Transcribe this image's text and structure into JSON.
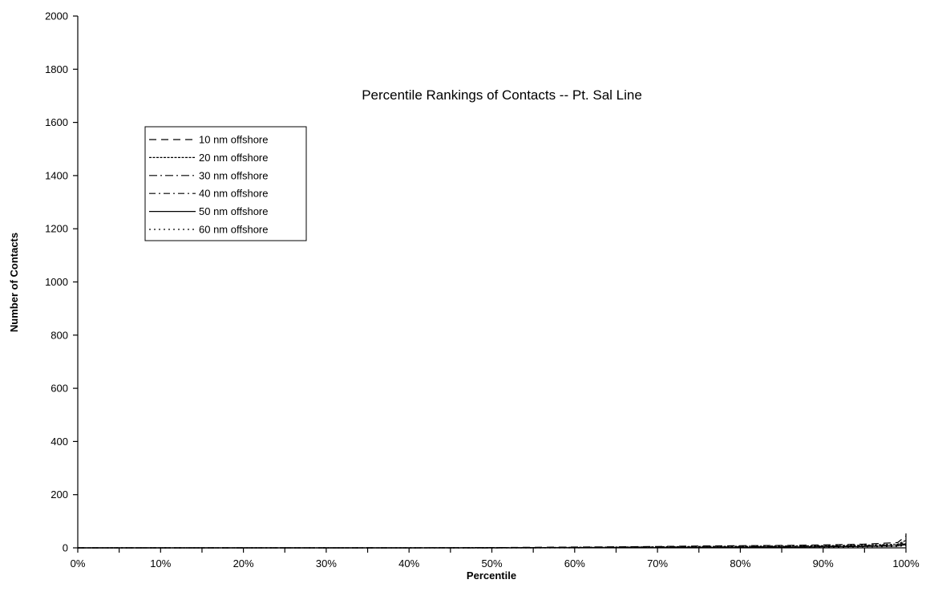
{
  "chart_data": {
    "type": "line",
    "title": "Percentile Rankings of Contacts -- Pt. Sal Line",
    "xlabel": "Percentile",
    "ylabel": "Number of Contacts",
    "xlim": [
      0,
      100
    ],
    "ylim": [
      0,
      2000
    ],
    "x_ticks": [
      "0%",
      "10%",
      "20%",
      "30%",
      "40%",
      "50%",
      "60%",
      "70%",
      "80%",
      "90%",
      "100%"
    ],
    "x_tick_values": [
      0,
      10,
      20,
      30,
      40,
      50,
      60,
      70,
      80,
      90,
      100
    ],
    "y_ticks": [
      "0",
      "200",
      "400",
      "600",
      "800",
      "1000",
      "1200",
      "1400",
      "1600",
      "1800",
      "2000"
    ],
    "y_tick_values": [
      0,
      200,
      400,
      600,
      800,
      1000,
      1200,
      1400,
      1600,
      1800,
      2000
    ],
    "grid": false,
    "legend_position": "top-left",
    "x": [
      0,
      10,
      20,
      30,
      40,
      50,
      55,
      60,
      65,
      70,
      75,
      80,
      85,
      90,
      95,
      99,
      100
    ],
    "series": [
      {
        "name": "10 nm offshore",
        "style": "dashed",
        "values": [
          0,
          0,
          0,
          0,
          0,
          1,
          2,
          3,
          4,
          5,
          7,
          8,
          9,
          11,
          14,
          20,
          45
        ]
      },
      {
        "name": "20 nm offshore",
        "style": "fine-dashed",
        "values": [
          0,
          0,
          0,
          0,
          0,
          1,
          1,
          2,
          3,
          4,
          5,
          6,
          7,
          8,
          10,
          14,
          28
        ]
      },
      {
        "name": "30 nm offshore",
        "style": "dash-long",
        "values": [
          0,
          0,
          0,
          0,
          0,
          0,
          1,
          1,
          2,
          3,
          3,
          4,
          5,
          6,
          8,
          11,
          22
        ]
      },
      {
        "name": "40 nm offshore",
        "style": "dash-dot",
        "values": [
          0,
          0,
          0,
          0,
          0,
          0,
          1,
          1,
          1,
          2,
          2,
          3,
          4,
          5,
          6,
          8,
          16
        ]
      },
      {
        "name": "50 nm offshore",
        "style": "solid",
        "values": [
          0,
          0,
          0,
          0,
          0,
          0,
          0,
          1,
          1,
          1,
          2,
          2,
          3,
          4,
          5,
          7,
          12
        ]
      },
      {
        "name": "60 nm offshore",
        "style": "dotted",
        "values": [
          0,
          0,
          0,
          0,
          0,
          0,
          0,
          0,
          1,
          1,
          1,
          2,
          2,
          3,
          4,
          5,
          9
        ]
      }
    ]
  }
}
